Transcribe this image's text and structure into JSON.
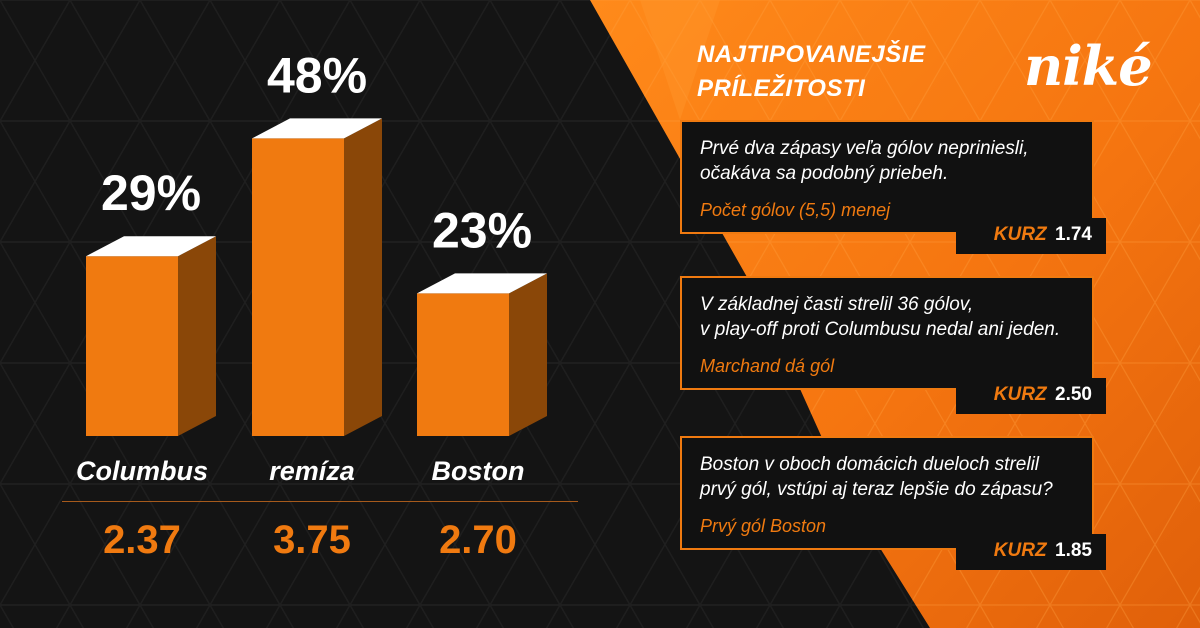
{
  "brand": {
    "logo_text": "niké",
    "accent_color": "#f07a10",
    "background_color": "#141414"
  },
  "chart_data": {
    "type": "bar",
    "categories": [
      "Columbus",
      "remíza",
      "Boston"
    ],
    "values": [
      29,
      48,
      23
    ],
    "value_labels": [
      "29%",
      "48%",
      "23%"
    ],
    "ylim": [
      0,
      55
    ],
    "unit": "%",
    "grid": false,
    "odds": [
      "2.37",
      "3.75",
      "2.70"
    ]
  },
  "panel": {
    "title_lines": [
      "NAJTIPOVANEJŠIE",
      "PRÍLEŽITOSTI"
    ],
    "kurz_label": "KURZ",
    "tips": [
      {
        "text_lines": [
          "Prvé dva zápasy veľa gólov nepriniesli,",
          "očakáva sa podobný priebeh."
        ],
        "market": "Počet gólov (5,5) menej",
        "odds": "1.74"
      },
      {
        "text_lines": [
          "V základnej časti strelil 36 gólov,",
          "v play-off proti Columbusu nedal ani jeden."
        ],
        "market": "Marchand dá gól",
        "odds": "2.50"
      },
      {
        "text_lines": [
          "Boston v oboch domácich dueloch strelil",
          "prvý gól, vstúpi aj teraz lepšie do zápasu?"
        ],
        "market": "Prvý gól Boston",
        "odds": "1.85"
      }
    ]
  }
}
